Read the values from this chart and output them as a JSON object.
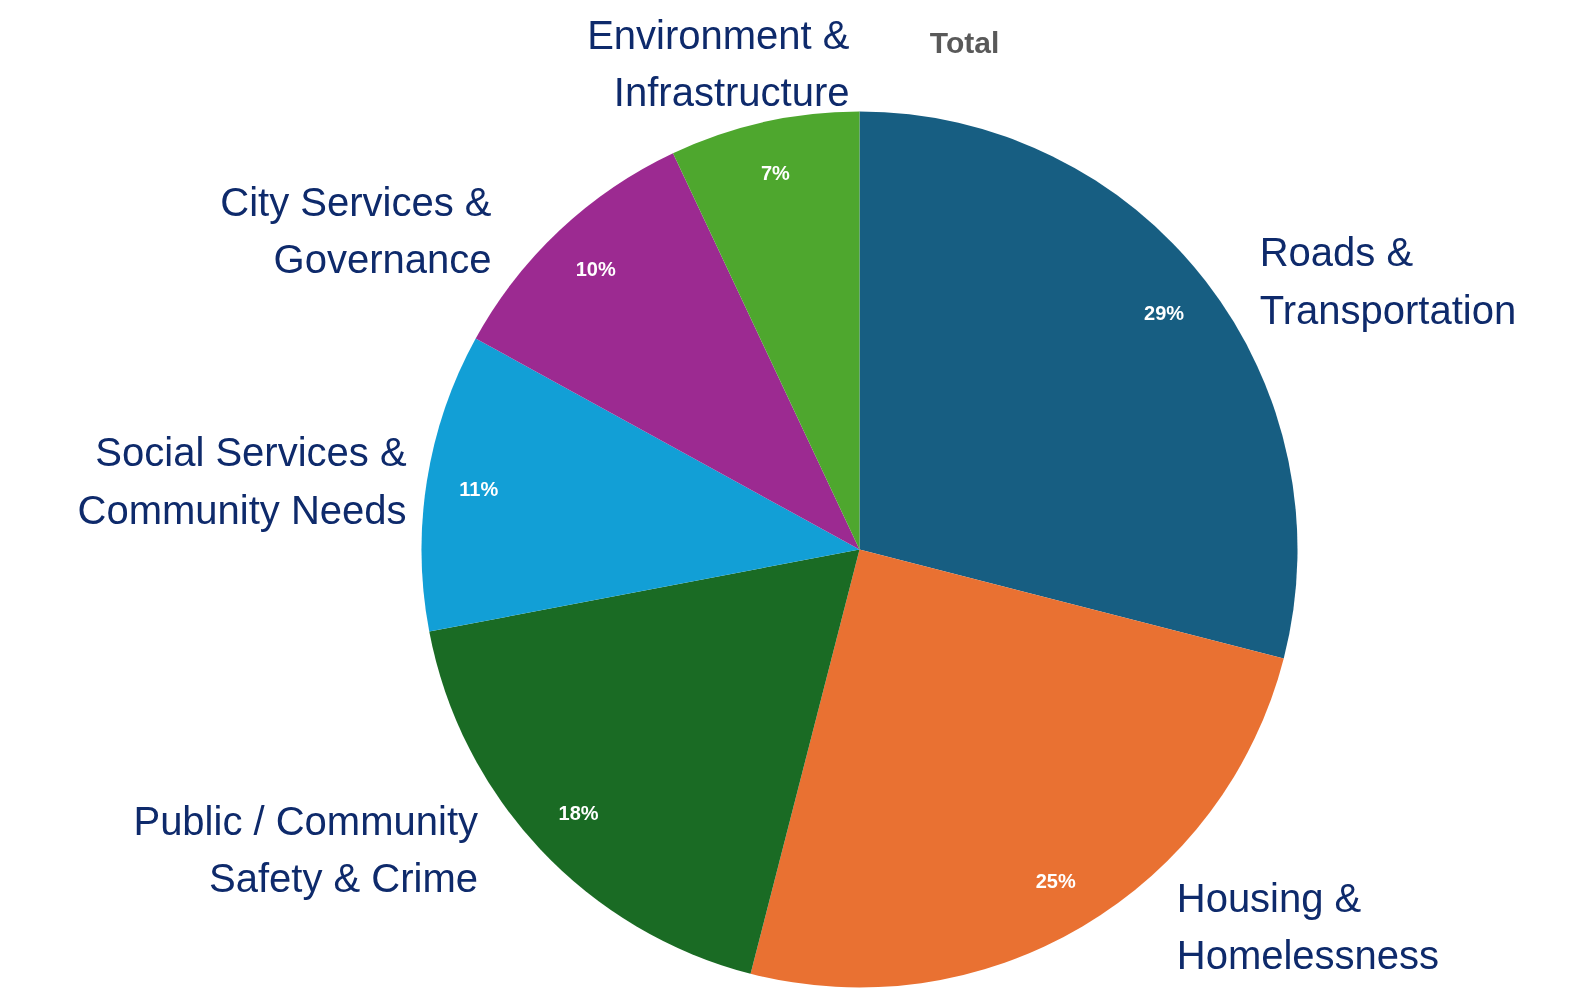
{
  "chart_data": {
    "type": "pie",
    "title": "Total",
    "categories": [
      "Roads &\nTransportation",
      "Housing &\nHomelessness",
      "Public / Community\nSafety & Crime",
      "Social Services &\nCommunity Needs",
      "City Services &\nGovernance",
      "Environment &\nInfrastructure"
    ],
    "values": [
      29,
      25,
      18,
      11,
      10,
      7
    ],
    "colors": [
      "#175e82",
      "#e97132",
      "#1a6b24",
      "#129fd6",
      "#9c2a91",
      "#4ea72e"
    ],
    "data_labels": true,
    "value_labels": [
      "29%",
      "25%",
      "18%",
      "11%",
      "10%",
      "7%"
    ]
  }
}
